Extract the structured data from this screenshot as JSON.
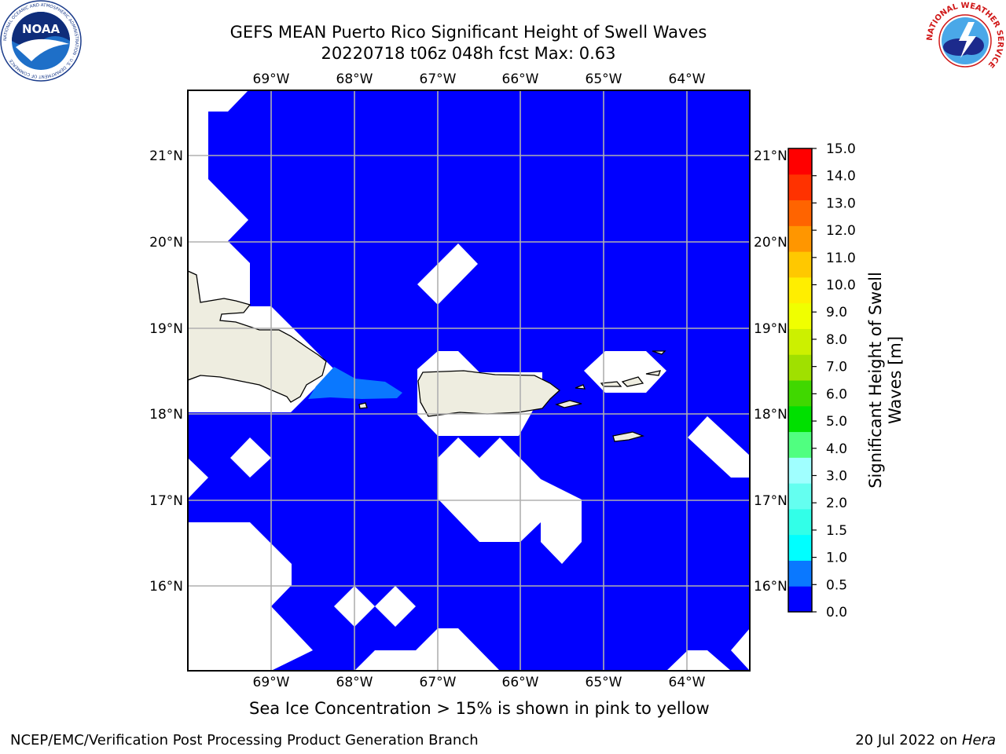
{
  "header": {
    "title_line1": "GEFS MEAN Puerto Rico Significant Height of Swell Waves",
    "title_line2": "20220718 t06z 048h fcst   Max: 0.63"
  },
  "logos": {
    "noaa": {
      "icon": "noaa-logo",
      "text": "NOAA",
      "ring_text": "NATIONAL OCEANIC AND ATMOSPHERIC ADMINISTRATION · U.S. DEPARTMENT OF COMMERCE"
    },
    "nws": {
      "icon": "nws-logo",
      "ring_text": "NATIONAL WEATHER SERVICE"
    }
  },
  "map": {
    "lon_labels": [
      "69°W",
      "68°W",
      "67°W",
      "66°W",
      "65°W",
      "64°W"
    ],
    "lat_labels": [
      "21°N",
      "20°N",
      "19°N",
      "18°N",
      "17°N",
      "16°N"
    ],
    "colors": {
      "ocean": "#0000ff",
      "land": "#eeede0",
      "coast": "#000000",
      "grid": "#b0b0b0",
      "highlight": "#0a78ff",
      "missing": "#ffffff"
    }
  },
  "colorbar": {
    "label_line1": "Significant Height of Swell",
    "label_line2": "Waves [m]",
    "ticks": [
      "0.0",
      "0.5",
      "1.0",
      "1.5",
      "2.0",
      "3.0",
      "4.0",
      "5.0",
      "6.0",
      "7.0",
      "8.0",
      "9.0",
      "10.0",
      "11.0",
      "12.0",
      "13.0",
      "14.0",
      "15.0"
    ],
    "colors": [
      "#0000ff",
      "#0a78ff",
      "#00ffff",
      "#32ffe8",
      "#64fff0",
      "#a0ffff",
      "#50ff80",
      "#00e000",
      "#40d800",
      "#a0e000",
      "#ccf000",
      "#f0ff00",
      "#ffee00",
      "#ffc800",
      "#ff9600",
      "#ff6400",
      "#ff3200",
      "#ff0000"
    ]
  },
  "caption": "Sea Ice Concentration > 15% is shown in pink to yellow",
  "footer": {
    "left": "NCEP/EMC/Verification Post Processing Product Generation Branch",
    "right_prefix": "20 Jul 2022 on ",
    "right_host": "Hera"
  }
}
